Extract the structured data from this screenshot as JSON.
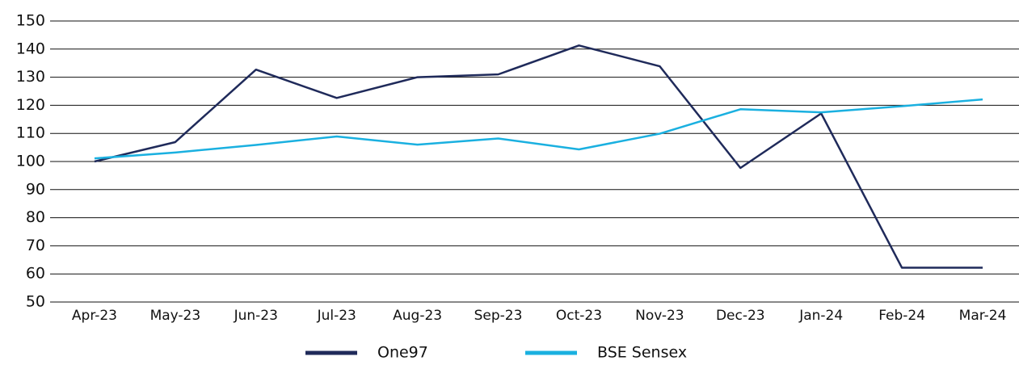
{
  "chart_data": {
    "type": "line",
    "categories": [
      "Apr-23",
      "May-23",
      "Jun-23",
      "Jul-23",
      "Aug-23",
      "Sep-23",
      "Oct-23",
      "Nov-23",
      "Dec-23",
      "Jan-24",
      "Feb-24",
      "Mar-24"
    ],
    "series": [
      {
        "name": "One97",
        "color": "#1f2a5a",
        "values": [
          100,
          106.9,
          132.7,
          122.6,
          130,
          131,
          141.3,
          133.9,
          97.7,
          117.1,
          62.2,
          62.2
        ]
      },
      {
        "name": "BSE Sensex",
        "color": "#1ab0e0",
        "values": [
          101.1,
          103.2,
          105.9,
          108.9,
          106,
          108.2,
          104.3,
          109.9,
          118.6,
          117.5,
          119.7,
          122.1
        ]
      }
    ],
    "ylim": [
      50,
      150
    ],
    "yticks": [
      50,
      60,
      70,
      80,
      90,
      100,
      110,
      120,
      130,
      140,
      150
    ],
    "grid": true,
    "legend": "bottom"
  }
}
